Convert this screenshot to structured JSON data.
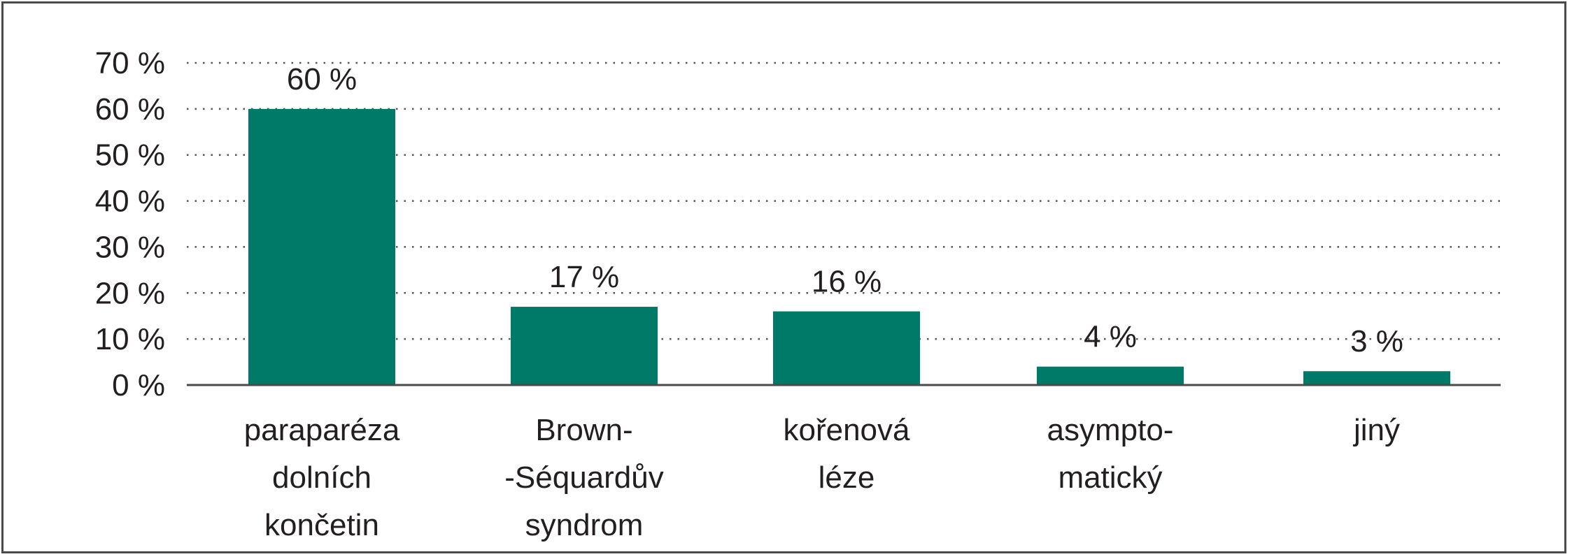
{
  "chart_data": {
    "type": "bar",
    "categories": [
      [
        "paraparéza",
        "dolních",
        "končetin"
      ],
      [
        "Brown-",
        "-Séquardův",
        "syndrom"
      ],
      [
        "kořenová",
        "léze"
      ],
      [
        "asympto-",
        "matický"
      ],
      [
        "jiný"
      ]
    ],
    "values": [
      60,
      17,
      16,
      4,
      3
    ],
    "value_labels": [
      "60 %",
      "17 %",
      "16 %",
      "4 %",
      "3 %"
    ],
    "y_ticks": [
      0,
      10,
      20,
      30,
      40,
      50,
      60,
      70
    ],
    "y_tick_labels": [
      "0 %",
      "10 %",
      "20 %",
      "30 %",
      "40 %",
      "50 %",
      "60 %",
      "70 %"
    ],
    "ylim": [
      0,
      70
    ],
    "grid": "dotted horizontal",
    "title": "",
    "xlabel": "",
    "ylabel": "",
    "bar_color": "#007a68"
  }
}
